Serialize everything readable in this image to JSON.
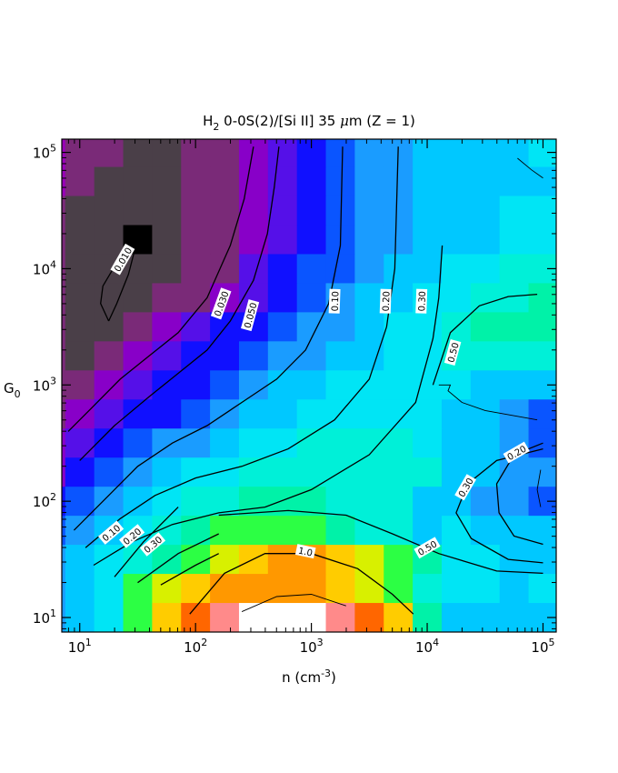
{
  "chart_data": {
    "type": "heatmap",
    "title": "H₂ 0-0S(2)/[Si II] 35 μm (Z = 1)",
    "title_parts": {
      "species": "H",
      "species_sub": "2",
      "rest": " 0-0S(2)/[Si II] 35 ",
      "mu": "μ",
      "unit": "m (Z = 1)"
    },
    "xlabel": {
      "main": "n (cm",
      "sup": "-3",
      "close": ")"
    },
    "ylabel": {
      "main": "G",
      "sub": "0"
    },
    "x_scale": "log",
    "y_scale": "log",
    "xlim": [
      7,
      130000
    ],
    "ylim": [
      7.5,
      130000
    ],
    "x_ticks": [
      {
        "value": 10,
        "base": "10",
        "exp": "1"
      },
      {
        "value": 100,
        "base": "10",
        "exp": "2"
      },
      {
        "value": 1000,
        "base": "10",
        "exp": "3"
      },
      {
        "value": 10000,
        "base": "10",
        "exp": "4"
      },
      {
        "value": 100000,
        "base": "10",
        "exp": "5"
      }
    ],
    "y_ticks": [
      {
        "value": 10,
        "base": "10",
        "exp": "1"
      },
      {
        "value": 100,
        "base": "10",
        "exp": "2"
      },
      {
        "value": 1000,
        "base": "10",
        "exp": "3"
      },
      {
        "value": 10000,
        "base": "10",
        "exp": "4"
      },
      {
        "value": 100000,
        "base": "10",
        "exp": "5"
      }
    ],
    "grid": false,
    "grid_log_x": [
      0.75,
      1.0,
      1.25,
      1.5,
      1.75,
      2.0,
      2.25,
      2.5,
      2.75,
      3.0,
      3.25,
      3.5,
      3.75,
      4.0,
      4.25,
      4.5,
      4.75,
      5.0
    ],
    "grid_log_y": [
      5.0,
      4.75,
      4.5,
      4.25,
      4.0,
      3.75,
      3.5,
      3.25,
      3.0,
      2.75,
      2.5,
      2.25,
      2.0,
      1.75,
      1.5,
      1.25,
      1.0
    ],
    "colors": {
      "P": "#9900b8",
      "M": "#7a2a78",
      "D": "#4a3f48",
      "K": "#000000",
      "V": "#8800c8",
      "I": "#5510e8",
      "B": "#1010ff",
      "L": "#0a55ff",
      "A": "#1a9cff",
      "S": "#00c8ff",
      "C": "#00e5f5",
      "T": "#00f0d8",
      "Q": "#00f2a8",
      "G": "#2cff44",
      "Y": "#d8f000",
      "O": "#ff9800",
      "R": "#ff6600",
      "N": "#ff8a8a",
      "W": "#ffffff",
      "H": "#ffcc00"
    },
    "cells": [
      "PMMDDMMVIBLAASSSSCS",
      "PMDDDMMVIBLAASSSSSS",
      "MDDDDMMVIBLAASSSCCC",
      "MDDKDMMVIBLAASSSCCC",
      "MDDDDMMIBLLASSCCTTQ",
      "MDDDMMVIBLASSCCTTQQ",
      "MDDMVIBBLAASCCTQQQQ",
      "MDMVIBBLAASSCCTTTTT",
      "MMVIBBLASSCCCCCSSSS",
      "MVIBBLASSCCCCCSSALB",
      "VIBLAASCCTTTTCSSALB",
      "VBLASCCTTTTTTTSSAAL",
      "BLASCTTQQQTTTSSAALL",
      "LASCTQGGGGQTTSCSSSA",
      "ASCTQGYHOOHYGQCCSSS",
      "ASCGYHOOOOHYGTCCSCG",
      "ASCGHRNWWWNRHQSSSSG"
    ],
    "contours": [
      {
        "level": "0.010",
        "points": [
          [
            1.25,
            3.55
          ],
          [
            1.18,
            3.7
          ],
          [
            1.2,
            3.85
          ],
          [
            1.3,
            4.02
          ],
          [
            1.42,
            4.22
          ],
          [
            1.48,
            4.18
          ],
          [
            1.42,
            3.95
          ],
          [
            1.32,
            3.7
          ],
          [
            1.25,
            3.55
          ]
        ],
        "label": {
          "x": 1.37,
          "y": 4.08,
          "angle": -60
        }
      },
      {
        "level": "0.030",
        "points": [
          [
            0.9,
            2.6
          ],
          [
            1.1,
            2.8
          ],
          [
            1.35,
            3.05
          ],
          [
            1.6,
            3.25
          ],
          [
            1.85,
            3.45
          ],
          [
            2.1,
            3.75
          ],
          [
            2.3,
            4.2
          ],
          [
            2.42,
            4.6
          ],
          [
            2.5,
            5.05
          ]
        ],
        "label": {
          "x": 2.22,
          "y": 3.7,
          "angle": -70
        }
      },
      {
        "level": "0.050",
        "points": [
          [
            1.0,
            2.35
          ],
          [
            1.3,
            2.65
          ],
          [
            1.6,
            2.9
          ],
          [
            1.85,
            3.1
          ],
          [
            2.1,
            3.3
          ],
          [
            2.3,
            3.55
          ],
          [
            2.5,
            3.9
          ],
          [
            2.62,
            4.3
          ],
          [
            2.68,
            4.7
          ],
          [
            2.72,
            5.05
          ]
        ],
        "label": {
          "x": 2.47,
          "y": 3.6,
          "angle": -75
        }
      },
      {
        "level": "0.10",
        "points": [
          [
            0.95,
            1.75
          ],
          [
            1.25,
            2.05
          ],
          [
            1.5,
            2.3
          ],
          [
            1.8,
            2.5
          ],
          [
            2.1,
            2.65
          ],
          [
            2.4,
            2.85
          ],
          [
            2.7,
            3.05
          ],
          [
            2.95,
            3.3
          ],
          [
            3.15,
            3.7
          ],
          [
            3.25,
            4.2
          ],
          [
            3.27,
            5.05
          ]
        ],
        "label": {
          "x": 3.2,
          "y": 3.72,
          "angle": -88
        }
      },
      {
        "level": "0.20",
        "points": [
          [
            1.05,
            1.6
          ],
          [
            1.35,
            1.85
          ],
          [
            1.65,
            2.05
          ],
          [
            2.0,
            2.2
          ],
          [
            2.4,
            2.3
          ],
          [
            2.8,
            2.45
          ],
          [
            3.2,
            2.7
          ],
          [
            3.5,
            3.05
          ],
          [
            3.65,
            3.5
          ],
          [
            3.72,
            4.0
          ],
          [
            3.75,
            5.05
          ]
        ],
        "label": {
          "x": 3.64,
          "y": 3.72,
          "angle": -88
        }
      },
      {
        "level": "0.30",
        "points": [
          [
            1.12,
            1.45
          ],
          [
            1.45,
            1.65
          ],
          [
            1.8,
            1.8
          ],
          [
            2.2,
            1.9
          ],
          [
            2.6,
            1.95
          ],
          [
            3.0,
            2.1
          ],
          [
            3.5,
            2.4
          ],
          [
            3.9,
            2.85
          ],
          [
            4.05,
            3.4
          ],
          [
            4.1,
            3.75
          ],
          [
            4.13,
            4.2
          ]
        ],
        "label": {
          "x": 3.95,
          "y": 3.72,
          "angle": -88
        }
      },
      {
        "level": "1.0",
        "points": [
          [
            1.95,
            1.03
          ],
          [
            2.25,
            1.38
          ],
          [
            2.6,
            1.55
          ],
          [
            3.0,
            1.55
          ],
          [
            3.4,
            1.42
          ],
          [
            3.7,
            1.2
          ],
          [
            3.88,
            1.03
          ]
        ],
        "label": {
          "x": 2.95,
          "y": 1.57,
          "angle": 12
        }
      },
      {
        "level": "0.50",
        "points": [
          [
            4.05,
            3.0
          ],
          [
            4.2,
            3.45
          ],
          [
            4.45,
            3.68
          ],
          [
            4.7,
            3.76
          ],
          [
            4.95,
            3.78
          ]
        ],
        "label": {
          "x": 4.22,
          "y": 3.28,
          "angle": -75
        }
      },
      {
        "level": "0.50b",
        "points": [
          [
            4.95,
            2.7
          ],
          [
            4.5,
            2.78
          ],
          [
            4.3,
            2.85
          ],
          [
            4.18,
            2.95
          ],
          [
            4.2,
            3.0
          ],
          [
            4.1,
            3.0
          ]
        ],
        "label": null
      },
      {
        "level": "0.50",
        "points": [
          [
            2.2,
            1.88
          ],
          [
            2.8,
            1.92
          ],
          [
            3.3,
            1.88
          ],
          [
            3.7,
            1.72
          ],
          [
            4.1,
            1.55
          ],
          [
            4.6,
            1.4
          ],
          [
            5.0,
            1.38
          ]
        ],
        "label": {
          "x": 4.0,
          "y": 1.6,
          "angle": -30
        }
      },
      {
        "level": "0.30",
        "points": [
          [
            5.0,
            2.45
          ],
          [
            4.6,
            2.35
          ],
          [
            4.35,
            2.15
          ],
          [
            4.25,
            1.9
          ],
          [
            4.38,
            1.68
          ],
          [
            4.7,
            1.5
          ],
          [
            5.0,
            1.47
          ]
        ],
        "label": {
          "x": 4.33,
          "y": 2.12,
          "angle": -60
        }
      },
      {
        "level": "0.20",
        "points": [
          [
            5.0,
            2.5
          ],
          [
            4.75,
            2.4
          ],
          [
            4.6,
            2.15
          ],
          [
            4.62,
            1.9
          ],
          [
            4.75,
            1.7
          ],
          [
            5.0,
            1.63
          ]
        ],
        "label": {
          "x": 4.77,
          "y": 2.42,
          "angle": -30
        }
      },
      {
        "level": "thin",
        "points": [
          [
            4.78,
            4.95
          ],
          [
            4.9,
            4.85
          ],
          [
            5.0,
            4.78
          ]
        ],
        "label": null
      },
      {
        "level": "thin2",
        "points": [
          [
            4.98,
            2.27
          ],
          [
            4.95,
            2.1
          ],
          [
            4.98,
            1.95
          ]
        ],
        "label": null
      },
      {
        "level": "0.10",
        "points": [
          [
            1.3,
            1.35
          ],
          [
            1.55,
            1.65
          ],
          [
            1.85,
            1.95
          ]
        ],
        "label": {
          "x": 1.27,
          "y": 1.73,
          "angle": -40
        }
      },
      {
        "level": "0.20",
        "points": [
          [
            1.5,
            1.3
          ],
          [
            1.85,
            1.55
          ],
          [
            2.2,
            1.72
          ]
        ],
        "label": {
          "x": 1.45,
          "y": 1.7,
          "angle": -40
        }
      },
      {
        "level": "0.30",
        "points": [
          [
            1.7,
            1.28
          ],
          [
            2.0,
            1.45
          ],
          [
            2.2,
            1.55
          ]
        ],
        "label": {
          "x": 1.63,
          "y": 1.63,
          "angle": -40
        }
      },
      {
        "level": "lower",
        "points": [
          [
            2.4,
            1.05
          ],
          [
            2.7,
            1.18
          ],
          [
            3.0,
            1.2
          ],
          [
            3.3,
            1.1
          ]
        ],
        "label": null
      }
    ]
  }
}
